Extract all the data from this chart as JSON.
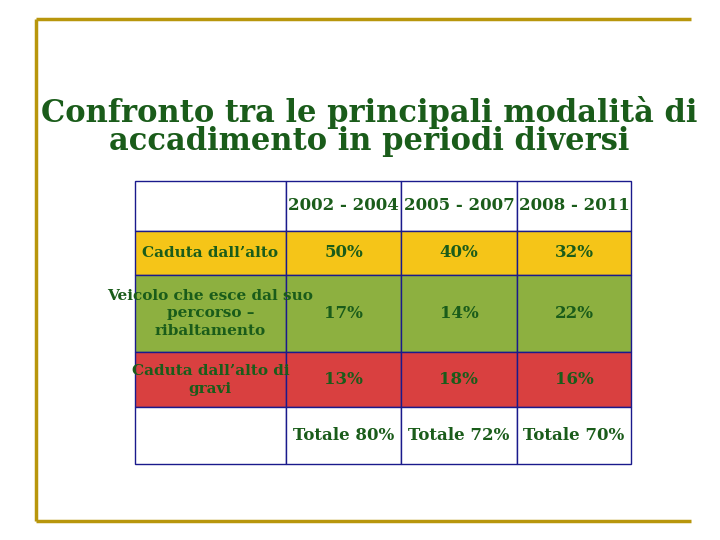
{
  "title_line1": "Confronto tra le principali modalità di",
  "title_line2": "accadimento in periodi diversi",
  "title_color": "#1a5c1a",
  "background_color": "#ffffff",
  "border_color": "#b8960c",
  "table_border_color": "#1a1a8c",
  "col_headers": [
    "",
    "2002 - 2004",
    "2005 - 2007",
    "2008 - 2011"
  ],
  "rows": [
    {
      "label": "Caduta dall’alto",
      "values": [
        "50%",
        "40%",
        "32%"
      ],
      "row_color": "#f5c518",
      "text_color": "#1a5c1a"
    },
    {
      "label": "Veicolo che esce dal suo\npercorso –\nribaltamento",
      "values": [
        "17%",
        "14%",
        "22%"
      ],
      "row_color": "#8db040",
      "text_color": "#1a5c1a"
    },
    {
      "label": "Caduta dall’alto di\ngravi",
      "values": [
        "13%",
        "18%",
        "16%"
      ],
      "row_color": "#d94040",
      "text_color": "#1a5c1a"
    },
    {
      "label": "",
      "values": [
        "Totale 80%",
        "Totale 72%",
        "Totale 70%"
      ],
      "row_color": "#ffffff",
      "text_color": "#1a5c1a"
    }
  ],
  "header_text_color": "#1a5c1a",
  "header_bg_color": "#ffffff",
  "title_fontsize": 22,
  "cell_fontsize": 12,
  "label_fontsize": 11
}
